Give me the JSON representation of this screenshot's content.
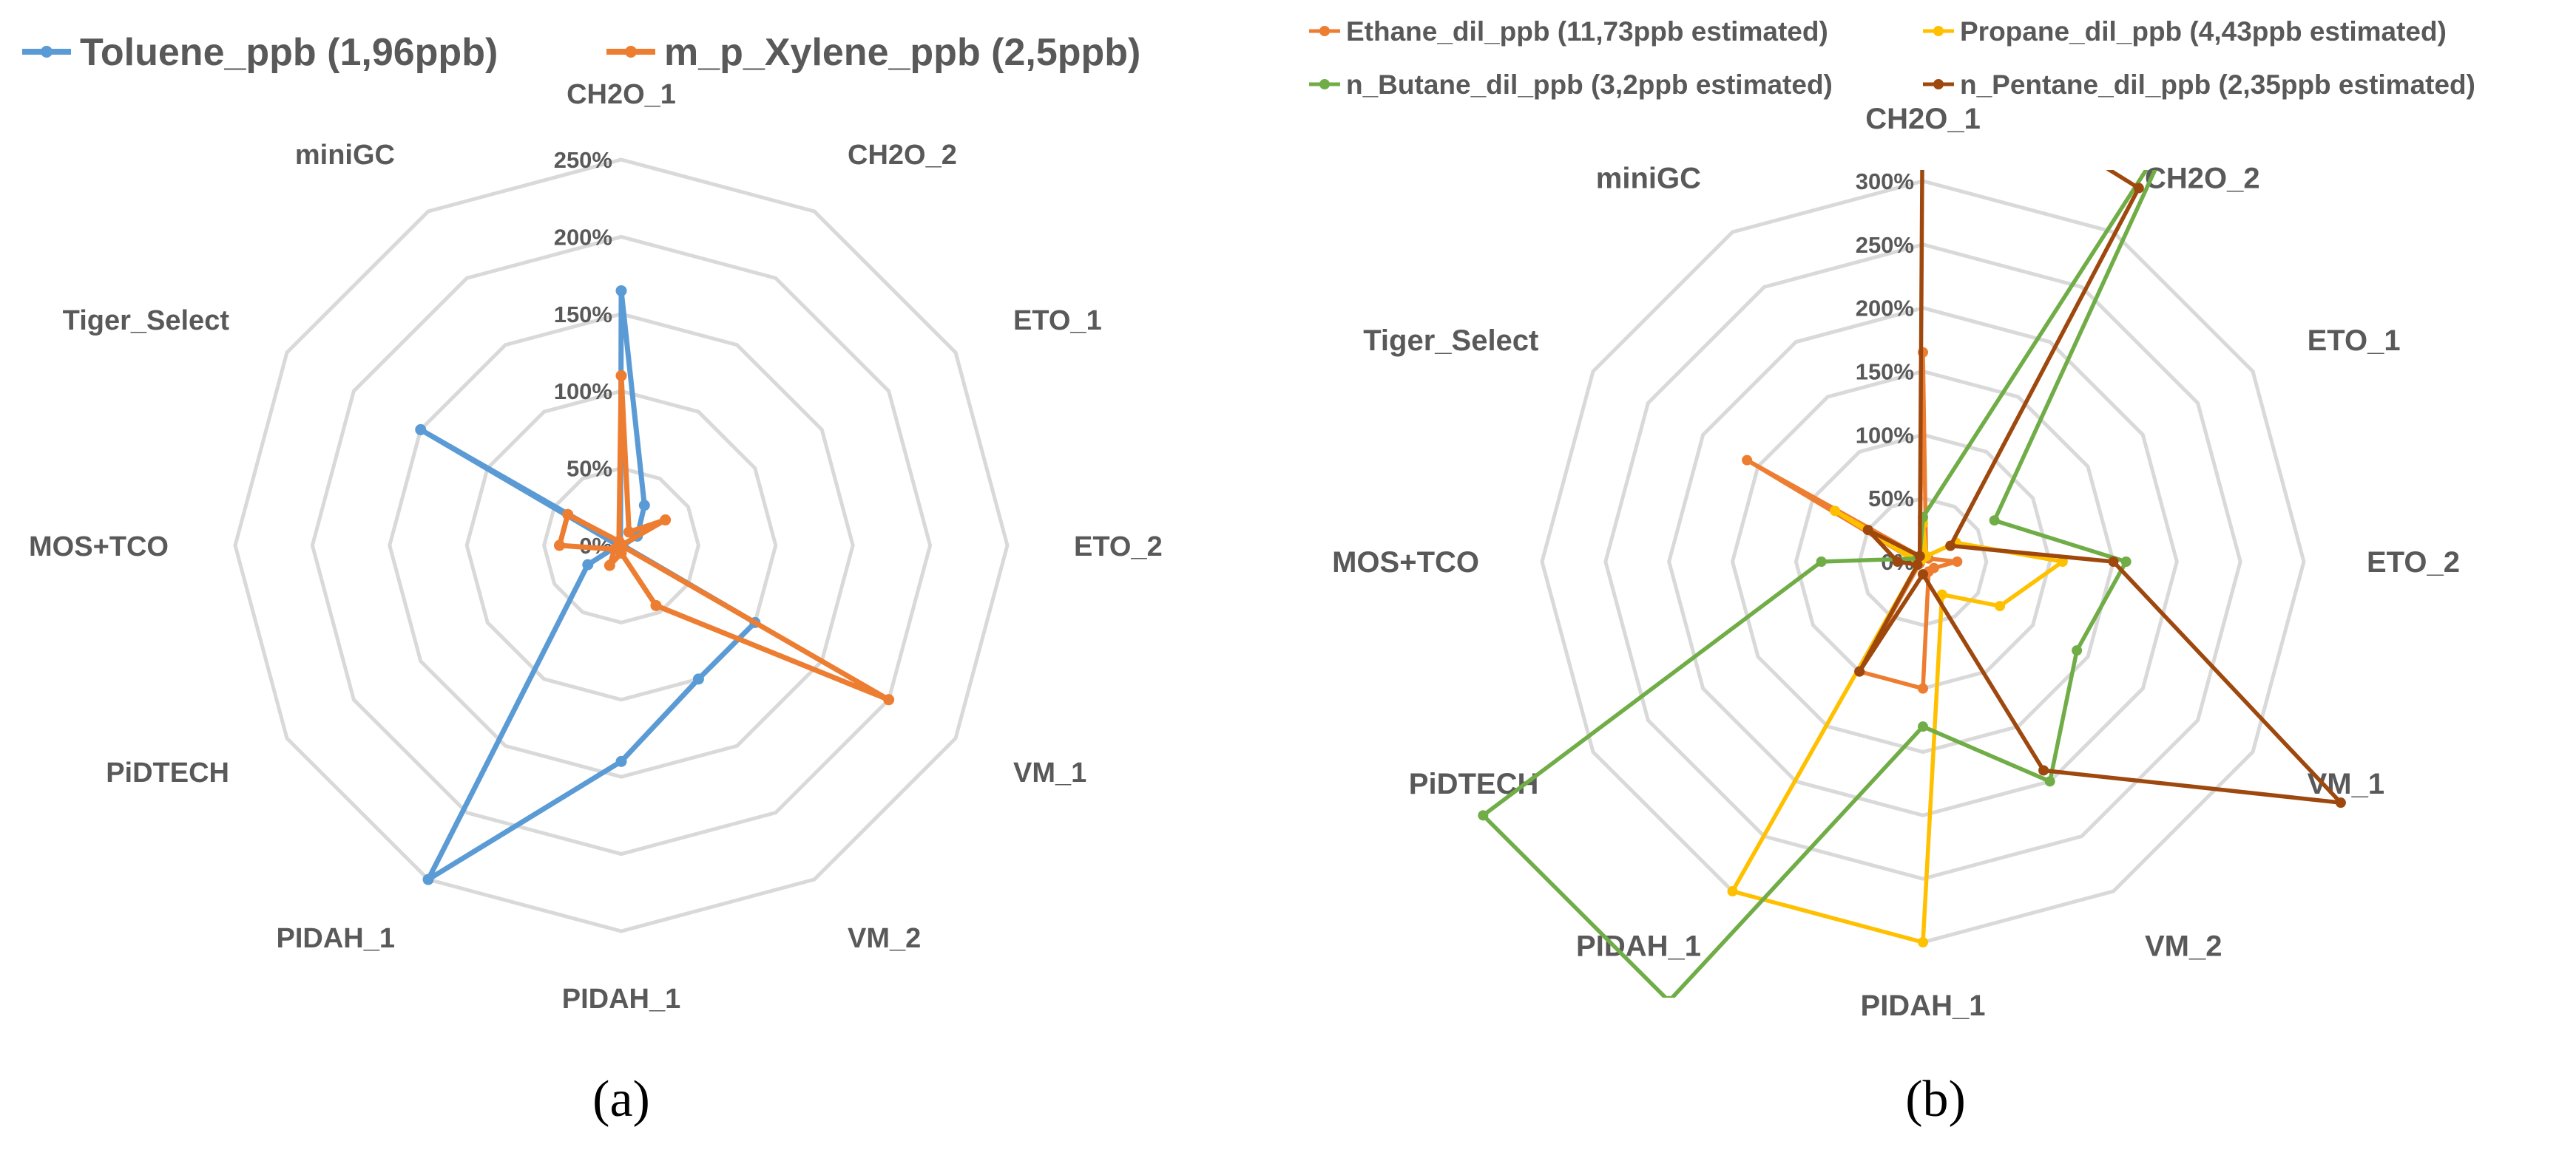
{
  "chart_data": [
    {
      "type": "radar",
      "panel_label": "(a)",
      "categories": [
        "CH2O_1",
        "CH2O_2",
        "ETO_1",
        "ETO_2",
        "VM_1",
        "VM_2",
        "PIDAH_1",
        "PIDAH_1",
        "PiDTECH",
        "MOS+TCO",
        "Tiger_Select",
        "miniGC"
      ],
      "rlim": [
        0,
        250
      ],
      "tick_labels": [
        "0%",
        "50%",
        "100%",
        "150%",
        "200%",
        "250%"
      ],
      "legend_position": "top",
      "series": [
        {
          "name": "Toluene_ppb (1,96ppb)",
          "color": "#5B9BD5",
          "values": [
            165,
            30,
            12,
            1,
            100,
            100,
            140,
            250,
            25,
            2,
            150,
            1
          ]
        },
        {
          "name": "m_p_Xylene_ppb (2,5ppb)",
          "color": "#ED7D31",
          "values": [
            110,
            10,
            33,
            0,
            200,
            45,
            5,
            15,
            5,
            40,
            40,
            3
          ]
        }
      ]
    },
    {
      "type": "radar",
      "panel_label": "(b)",
      "categories": [
        "CH2O_1",
        "CH2O_2",
        "ETO_1",
        "ETO_2",
        "VM_1",
        "VM_2",
        "PIDAH_1",
        "PIDAH_1",
        "PiDTECH",
        "MOS+TCO",
        "Tiger_Select",
        "miniGC"
      ],
      "rlim": [
        0,
        300
      ],
      "tick_labels": [
        "0%",
        "50%",
        "100%",
        "150%",
        "200%",
        "250%",
        "300%"
      ],
      "legend_position": "top",
      "series": [
        {
          "name": "Ethane_dil_ppb (11,73ppb estimated)",
          "color": "#ED7D31",
          "values": [
            165,
            5,
            5,
            27,
            10,
            9,
            100,
            100,
            3,
            5,
            160,
            5
          ]
        },
        {
          "name": "Propane_dil_ppb (4,43ppb estimated)",
          "color": "#FFC000",
          "values": [
            30,
            5,
            30,
            110,
            70,
            30,
            300,
            300,
            5,
            5,
            80,
            2
          ]
        },
        {
          "name": "n_Butane_dil_ppb (3,2ppb estimated)",
          "color": "#70AD47",
          "values": [
            35,
            400,
            65,
            160,
            140,
            200,
            130,
            400,
            400,
            80,
            5,
            5
          ]
        },
        {
          "name": "n_Pentane_dil_ppb (2,35ppb estimated)",
          "color": "#9E480E",
          "values": [
            400,
            340,
            25,
            150,
            380,
            190,
            10,
            100,
            5,
            20,
            50,
            5
          ]
        }
      ]
    }
  ]
}
